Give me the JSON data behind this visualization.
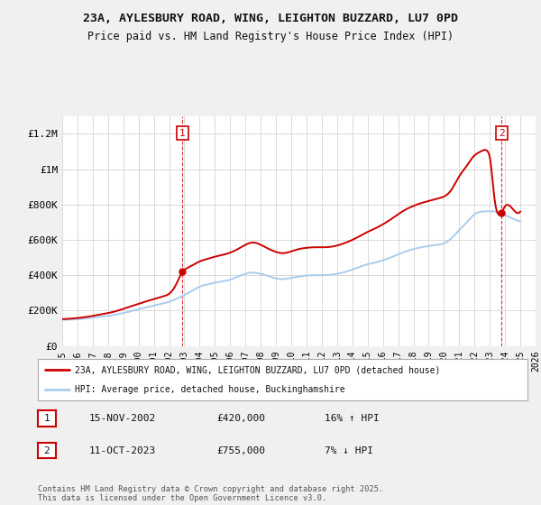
{
  "title_line1": "23A, AYLESBURY ROAD, WING, LEIGHTON BUZZARD, LU7 0PD",
  "title_line2": "Price paid vs. HM Land Registry's House Price Index (HPI)",
  "ylabel_ticks": [
    "£0",
    "£200K",
    "£400K",
    "£600K",
    "£800K",
    "£1M",
    "£1.2M"
  ],
  "ytick_values": [
    0,
    200000,
    400000,
    600000,
    800000,
    1000000,
    1200000
  ],
  "ylim": [
    0,
    1300000
  ],
  "xlim_start": 1995,
  "xlim_end": 2026,
  "sale1_date": 2002.88,
  "sale1_price": 420000,
  "sale1_label": "1",
  "sale2_date": 2023.78,
  "sale2_price": 755000,
  "sale2_label": "2",
  "legend_line1": "23A, AYLESBURY ROAD, WING, LEIGHTON BUZZARD, LU7 0PD (detached house)",
  "legend_line2": "HPI: Average price, detached house, Buckinghamshire",
  "table_row1": [
    "1",
    "15-NOV-2002",
    "£420,000",
    "16% ↑ HPI"
  ],
  "table_row2": [
    "2",
    "11-OCT-2023",
    "£755,000",
    "7% ↓ HPI"
  ],
  "footnote": "Contains HM Land Registry data © Crown copyright and database right 2025.\nThis data is licensed under the Open Government Licence v3.0.",
  "line_color_red": "#cc0000",
  "line_color_blue": "#aaccee",
  "vline_color": "#cc0000",
  "bg_color": "#f0f0f0",
  "plot_bg_color": "#ffffff",
  "grid_color": "#cccccc",
  "years_hpi": [
    1995,
    1995.5,
    1996,
    1996.5,
    1997,
    1997.5,
    1998,
    1998.5,
    1999,
    1999.5,
    2000,
    2000.5,
    2001,
    2001.5,
    2002,
    2002.5,
    2003,
    2003.5,
    2004,
    2004.5,
    2005,
    2005.5,
    2006,
    2006.5,
    2007,
    2007.5,
    2008,
    2008.5,
    2009,
    2009.5,
    2010,
    2010.5,
    2011,
    2011.5,
    2012,
    2012.5,
    2013,
    2013.5,
    2014,
    2014.5,
    2015,
    2015.5,
    2016,
    2016.5,
    2017,
    2017.5,
    2018,
    2018.5,
    2019,
    2019.5,
    2020,
    2020.5,
    2021,
    2021.5,
    2022,
    2022.5,
    2023,
    2023.5,
    2024,
    2024.5,
    2025
  ],
  "hpi_values": [
    148000,
    149000,
    151000,
    155000,
    160000,
    165000,
    170000,
    177000,
    186000,
    196000,
    208000,
    218000,
    228000,
    238000,
    250000,
    268000,
    288000,
    312000,
    335000,
    348000,
    358000,
    365000,
    375000,
    392000,
    408000,
    415000,
    408000,
    395000,
    382000,
    378000,
    385000,
    392000,
    398000,
    400000,
    400000,
    402000,
    408000,
    418000,
    432000,
    448000,
    462000,
    472000,
    485000,
    500000,
    518000,
    535000,
    548000,
    558000,
    565000,
    572000,
    580000,
    610000,
    655000,
    700000,
    745000,
    760000,
    762000,
    758000,
    740000,
    720000,
    705000
  ],
  "years_prop": [
    1995,
    1995.5,
    1996,
    1996.5,
    1997,
    1997.5,
    1998,
    1998.5,
    1999,
    1999.5,
    2000,
    2000.5,
    2001,
    2001.5,
    2002,
    2002.5,
    2002.88,
    2003,
    2003.5,
    2004,
    2004.5,
    2005,
    2005.5,
    2006,
    2006.5,
    2007,
    2007.5,
    2008,
    2008.5,
    2009,
    2009.5,
    2010,
    2010.5,
    2011,
    2011.5,
    2012,
    2012.5,
    2013,
    2013.5,
    2014,
    2014.5,
    2015,
    2015.5,
    2016,
    2016.5,
    2017,
    2017.5,
    2018,
    2018.5,
    2019,
    2019.5,
    2020,
    2020.5,
    2021,
    2021.5,
    2022,
    2022.3,
    2022.6,
    2022.9,
    2023.0,
    2023.3,
    2023.78,
    2024,
    2024.5,
    2025
  ],
  "prop_values": [
    152000,
    154000,
    158000,
    163000,
    170000,
    178000,
    186000,
    196000,
    210000,
    224000,
    238000,
    252000,
    265000,
    278000,
    295000,
    355000,
    420000,
    430000,
    455000,
    478000,
    492000,
    505000,
    515000,
    528000,
    548000,
    572000,
    585000,
    572000,
    550000,
    532000,
    525000,
    535000,
    548000,
    555000,
    558000,
    558000,
    560000,
    568000,
    582000,
    600000,
    622000,
    645000,
    665000,
    688000,
    715000,
    745000,
    772000,
    792000,
    808000,
    820000,
    832000,
    845000,
    885000,
    960000,
    1020000,
    1078000,
    1095000,
    1108000,
    1095000,
    1068000,
    840000,
    755000,
    790000,
    775000,
    760000
  ]
}
